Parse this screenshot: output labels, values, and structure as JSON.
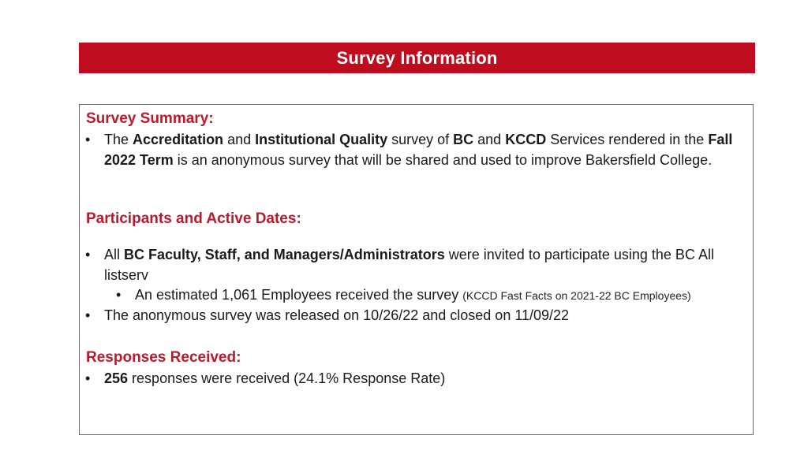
{
  "header": {
    "title": "Survey Information"
  },
  "summary": {
    "heading": "Survey Summary:",
    "t1": "The ",
    "b1": "Accreditation",
    "t2": " and ",
    "b2": "Institutional Quality",
    "t3": " survey of ",
    "b3": "BC",
    "t4": " and ",
    "b4": "KCCD",
    "t5": " Services rendered in the ",
    "b5": "Fall 2022 Term",
    "t6": " is an anonymous survey that will be shared and used to improve Bakersfield College."
  },
  "participants": {
    "heading": "Participants and Active Dates:",
    "item1_t1": "All ",
    "item1_b1": "BC Faculty, Staff, and Managers/Administrators",
    "item1_t2": " were invited to participate using the BC All listserv",
    "sub_t1": "An estimated 1,061 Employees received the survey ",
    "sub_note": "(KCCD Fast Facts on 2021-22 BC Employees)",
    "item2": "The anonymous survey was released on 10/26/22 and closed on 11/09/22"
  },
  "responses": {
    "heading": "Responses Received:",
    "b1": "256",
    "t1": " responses were received (24.1% Response Rate)"
  },
  "bullet_char": "•",
  "colors": {
    "brand_red": "#bf0d1f",
    "heading_red": "#c0172b"
  }
}
